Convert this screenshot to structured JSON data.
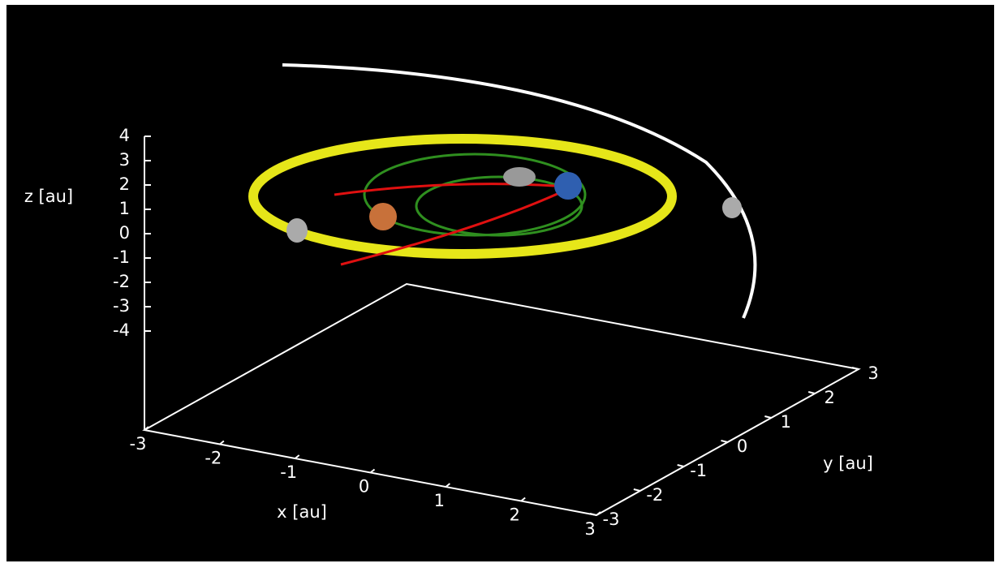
{
  "chart_data": {
    "type": "orbit3d",
    "xlabel": "x [au]",
    "ylabel": "y [au]",
    "zlabel": "z [au]",
    "xlim": [
      -3,
      3
    ],
    "ylim": [
      -3,
      3
    ],
    "zlim": [
      -4,
      4
    ],
    "xticks": [
      -3,
      -2,
      -1,
      0,
      1,
      2,
      3
    ],
    "yticks": [
      -3,
      -2,
      -1,
      0,
      1,
      2,
      3
    ],
    "zticks": [
      4,
      3,
      2,
      1,
      0,
      -1,
      -2,
      -3,
      -4
    ]
  }
}
